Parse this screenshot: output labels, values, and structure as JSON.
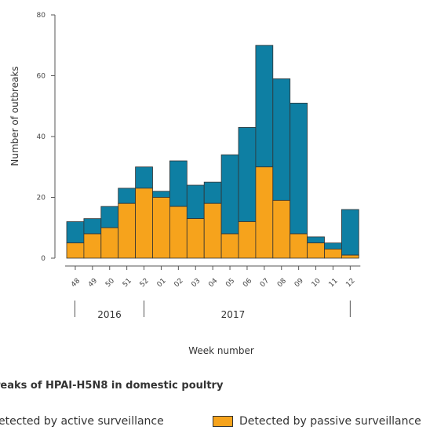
{
  "chart_data": {
    "type": "bar",
    "stacked": true,
    "title": "reaks of HPAI-H5N8 in domestic poultry",
    "xlabel": "Week number",
    "ylabel": "Number of outbreaks",
    "ylim": [
      0,
      80
    ],
    "yticks": [
      0,
      20,
      40,
      60,
      80
    ],
    "categories": [
      "48",
      "49",
      "50",
      "51",
      "52",
      "01",
      "02",
      "03",
      "04",
      "05",
      "06",
      "07",
      "08",
      "09",
      "10",
      "11",
      "12"
    ],
    "year_groups": [
      {
        "label": "2016",
        "weeks": [
          "48",
          "49",
          "50",
          "51",
          "52"
        ]
      },
      {
        "label": "2017",
        "weeks": [
          "01",
          "02",
          "03",
          "04",
          "05",
          "06",
          "07",
          "08",
          "09",
          "10",
          "11",
          "12"
        ]
      }
    ],
    "series": [
      {
        "name": "Detected by passive surveillance",
        "color": "#f6a31c",
        "values": [
          5,
          8,
          10,
          18,
          23,
          20,
          17,
          13,
          18,
          8,
          12,
          30,
          19,
          8,
          5,
          3,
          1
        ]
      },
      {
        "name": "etected by active surveillance",
        "color": "#0e7fa3",
        "values": [
          7,
          5,
          7,
          5,
          7,
          2,
          15,
          11,
          7,
          26,
          31,
          40,
          40,
          43,
          2,
          2,
          15
        ]
      }
    ],
    "grid": false,
    "legend_position": "bottom"
  },
  "legend": {
    "title": "reaks of HPAI-H5N8 in domestic poultry",
    "active_label": "etected by active surveillance",
    "passive_label": "Detected by passive surveillance"
  },
  "colors": {
    "active": "#0e7fa3",
    "passive": "#f6a31c",
    "outline": "#333333"
  }
}
